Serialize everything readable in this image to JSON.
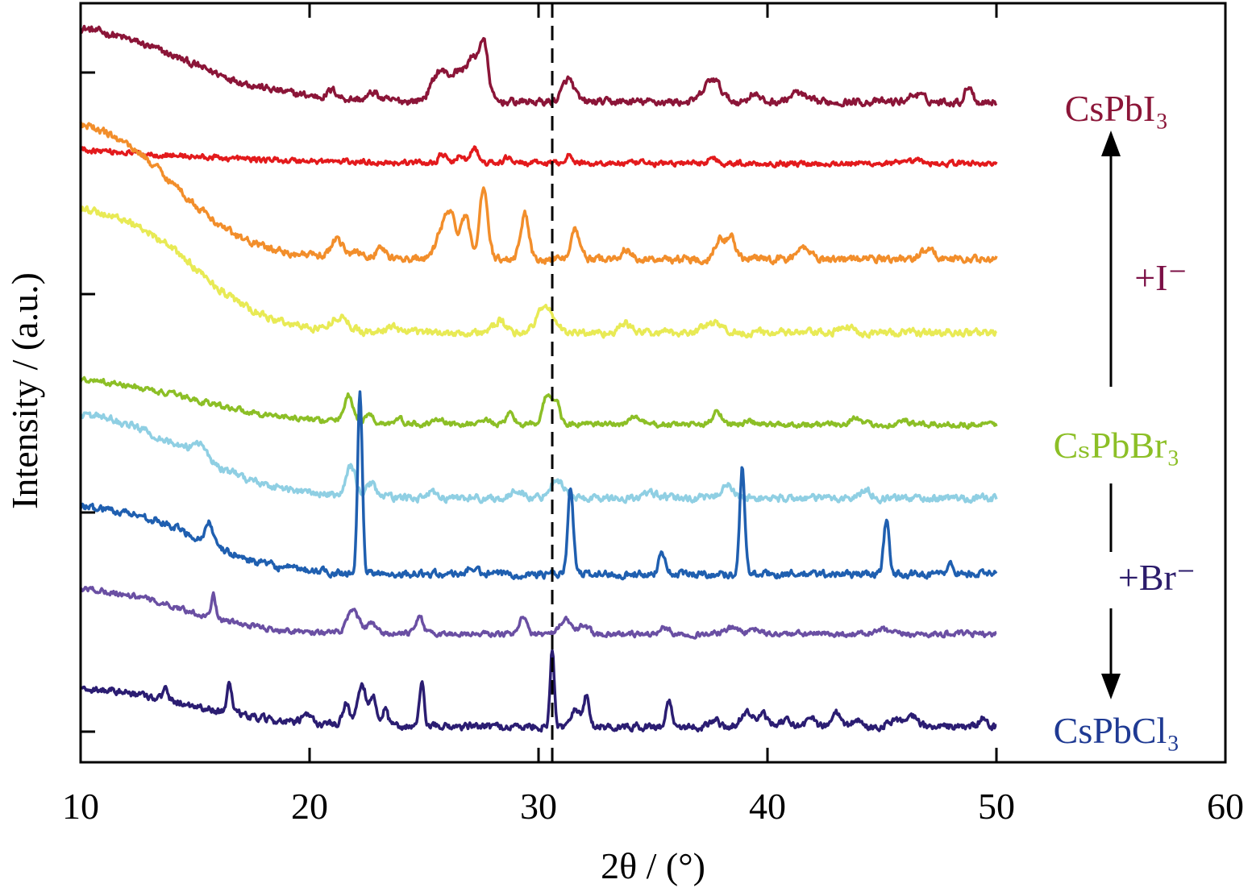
{
  "chart_data": {
    "type": "line",
    "title": "",
    "xlabel": "2θ / (°)",
    "ylabel": "Intensity / (a.u.)",
    "xlim": [
      10,
      60
    ],
    "x_ticks": [
      "10",
      "20",
      "30",
      "40",
      "50",
      "60"
    ],
    "yticks_labeled": false,
    "grid": false,
    "reference_line": {
      "x": 30.6,
      "style": "dashed"
    },
    "label_texts": {
      "cspbi3": "CsPbI₃",
      "cspbbr3": "CₛPbBr₃",
      "cspbcl3": "CsPbCl₃",
      "plus_i": "+I⁻",
      "plus_br": "+Br⁻"
    },
    "colors": {
      "cspbi3": "#8b1538",
      "cspbbr3": "#8cbf26",
      "cspbcl3": "#1f3a93",
      "plus_i": "#7b1046",
      "plus_br": "#2c1c6b"
    },
    "series": [
      {
        "name": "CsPbI₃",
        "color": "#8b1538",
        "baseline": 0.87,
        "bg_amp": 0.11,
        "bg_mid": 14.5,
        "bg_w": 2.2,
        "noise": 0.004,
        "peaks": [
          [
            21.0,
            0.01,
            0.2
          ],
          [
            22.8,
            0.01,
            0.2
          ],
          [
            25.7,
            0.04,
            0.35
          ],
          [
            26.5,
            0.035,
            0.3
          ],
          [
            27.1,
            0.05,
            0.25
          ],
          [
            27.6,
            0.075,
            0.2
          ],
          [
            31.3,
            0.03,
            0.25
          ],
          [
            37.6,
            0.03,
            0.35
          ],
          [
            39.4,
            0.012,
            0.2
          ],
          [
            41.3,
            0.012,
            0.3
          ],
          [
            46.5,
            0.01,
            0.3
          ],
          [
            48.8,
            0.022,
            0.15
          ]
        ]
      },
      {
        "name": "",
        "color": "#e31a1c",
        "baseline": 0.789,
        "bg_amp": 0.033,
        "bg_mid": 11,
        "bg_w": 4,
        "noise": 0.003,
        "peaks": [
          [
            25.8,
            0.012,
            0.15
          ],
          [
            26.6,
            0.01,
            0.15
          ],
          [
            27.2,
            0.02,
            0.15
          ],
          [
            28.7,
            0.008,
            0.15
          ],
          [
            31.3,
            0.01,
            0.15
          ],
          [
            37.6,
            0.007,
            0.2
          ],
          [
            46.5,
            0.004,
            0.2
          ]
        ]
      },
      {
        "name": "",
        "color": "#f28e2b",
        "baseline": 0.663,
        "bg_amp": 0.19,
        "bg_mid": 14.2,
        "bg_w": 1.6,
        "noise": 0.004,
        "peaks": [
          [
            21.2,
            0.025,
            0.25
          ],
          [
            22.1,
            0.01,
            0.2
          ],
          [
            23.1,
            0.015,
            0.2
          ],
          [
            25.8,
            0.04,
            0.25
          ],
          [
            26.2,
            0.05,
            0.2
          ],
          [
            26.8,
            0.055,
            0.2
          ],
          [
            27.6,
            0.095,
            0.18
          ],
          [
            29.4,
            0.06,
            0.18
          ],
          [
            31.6,
            0.04,
            0.2
          ],
          [
            33.8,
            0.012,
            0.2
          ],
          [
            37.9,
            0.028,
            0.2
          ],
          [
            38.4,
            0.028,
            0.2
          ],
          [
            41.6,
            0.015,
            0.3
          ],
          [
            47.0,
            0.012,
            0.3
          ]
        ]
      },
      {
        "name": "",
        "color": "#e8ea55",
        "baseline": 0.566,
        "bg_amp": 0.17,
        "bg_mid": 15.0,
        "bg_w": 1.6,
        "noise": 0.004,
        "peaks": [
          [
            21.3,
            0.018,
            0.35
          ],
          [
            23.6,
            0.007,
            0.25
          ],
          [
            28.3,
            0.015,
            0.25
          ],
          [
            30.3,
            0.035,
            0.35
          ],
          [
            33.8,
            0.012,
            0.25
          ],
          [
            37.6,
            0.012,
            0.4
          ],
          [
            43.5,
            0.007,
            0.3
          ]
        ]
      },
      {
        "name": "CₛPbBr₃",
        "color": "#8cbf26",
        "baseline": 0.445,
        "bg_amp": 0.065,
        "bg_mid": 15.0,
        "bg_w": 2.3,
        "noise": 0.003,
        "peaks": [
          [
            21.7,
            0.035,
            0.2
          ],
          [
            22.6,
            0.012,
            0.15
          ],
          [
            23.9,
            0.006,
            0.15
          ],
          [
            25.7,
            0.007,
            0.15
          ],
          [
            27.7,
            0.008,
            0.15
          ],
          [
            28.8,
            0.015,
            0.15
          ],
          [
            30.4,
            0.04,
            0.2
          ],
          [
            30.8,
            0.025,
            0.15
          ],
          [
            34.2,
            0.01,
            0.25
          ],
          [
            37.8,
            0.018,
            0.2
          ],
          [
            39.2,
            0.005,
            0.15
          ],
          [
            43.8,
            0.01,
            0.2
          ],
          [
            46.0,
            0.005,
            0.2
          ]
        ]
      },
      {
        "name": "",
        "color": "#8fcfe3",
        "baseline": 0.348,
        "bg_amp": 0.12,
        "bg_mid": 14.8,
        "bg_w": 1.9,
        "noise": 0.004,
        "peaks": [
          [
            15.2,
            0.02,
            0.3
          ],
          [
            21.8,
            0.04,
            0.2
          ],
          [
            22.7,
            0.018,
            0.2
          ],
          [
            25.3,
            0.006,
            0.2
          ],
          [
            29.1,
            0.012,
            0.2
          ],
          [
            30.8,
            0.025,
            0.3
          ],
          [
            34.9,
            0.006,
            0.3
          ],
          [
            38.2,
            0.018,
            0.25
          ],
          [
            44.3,
            0.01,
            0.25
          ]
        ]
      },
      {
        "name": "",
        "color": "#1f5fb0",
        "baseline": 0.248,
        "bg_amp": 0.092,
        "bg_mid": 15.2,
        "bg_w": 1.6,
        "noise": 0.004,
        "peaks": [
          [
            15.6,
            0.03,
            0.15
          ],
          [
            22.2,
            0.235,
            0.1
          ],
          [
            27.1,
            0.008,
            0.2
          ],
          [
            31.4,
            0.11,
            0.12
          ],
          [
            35.4,
            0.028,
            0.15
          ],
          [
            38.9,
            0.14,
            0.11
          ],
          [
            45.2,
            0.07,
            0.12
          ],
          [
            48.0,
            0.012,
            0.15
          ]
        ]
      },
      {
        "name": "",
        "color": "#6a4fa3",
        "baseline": 0.169,
        "bg_amp": 0.065,
        "bg_mid": 14.5,
        "bg_w": 1.8,
        "noise": 0.003,
        "peaks": [
          [
            15.8,
            0.03,
            0.1
          ],
          [
            21.9,
            0.03,
            0.25
          ],
          [
            22.7,
            0.012,
            0.2
          ],
          [
            24.8,
            0.025,
            0.15
          ],
          [
            29.3,
            0.025,
            0.15
          ],
          [
            31.2,
            0.018,
            0.25
          ],
          [
            32.0,
            0.012,
            0.2
          ],
          [
            35.5,
            0.008,
            0.2
          ],
          [
            38.5,
            0.008,
            0.3
          ],
          [
            39.5,
            0.006,
            0.2
          ],
          [
            45.0,
            0.005,
            0.3
          ]
        ]
      },
      {
        "name": "CsPbCl₃",
        "color": "#2b1d72",
        "baseline": 0.047,
        "bg_amp": 0.055,
        "bg_mid": 15.0,
        "bg_w": 2.0,
        "noise": 0.004,
        "peaks": [
          [
            13.7,
            0.012,
            0.1
          ],
          [
            16.5,
            0.045,
            0.1
          ],
          [
            19.9,
            0.01,
            0.2
          ],
          [
            21.6,
            0.03,
            0.15
          ],
          [
            22.3,
            0.05,
            0.2
          ],
          [
            22.8,
            0.035,
            0.15
          ],
          [
            23.3,
            0.02,
            0.12
          ],
          [
            24.9,
            0.055,
            0.1
          ],
          [
            30.6,
            0.1,
            0.09
          ],
          [
            31.6,
            0.025,
            0.2
          ],
          [
            32.1,
            0.04,
            0.12
          ],
          [
            35.7,
            0.035,
            0.12
          ],
          [
            37.7,
            0.01,
            0.15
          ],
          [
            39.1,
            0.02,
            0.25
          ],
          [
            39.8,
            0.015,
            0.2
          ],
          [
            40.8,
            0.008,
            0.2
          ],
          [
            41.9,
            0.015,
            0.15
          ],
          [
            43.0,
            0.02,
            0.15
          ],
          [
            43.9,
            0.01,
            0.15
          ],
          [
            45.6,
            0.01,
            0.3
          ],
          [
            46.4,
            0.012,
            0.2
          ],
          [
            49.4,
            0.01,
            0.15
          ]
        ]
      }
    ],
    "x_range_data": [
      10,
      50
    ]
  }
}
